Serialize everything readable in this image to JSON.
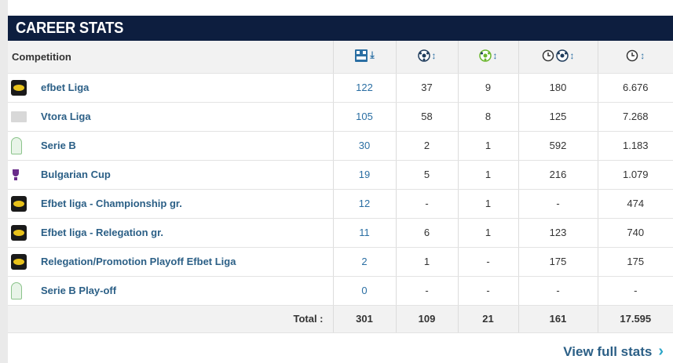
{
  "header": {
    "title": "CAREER STATS"
  },
  "table": {
    "competition_header": "Competition",
    "column_icons": [
      {
        "icon": "appearances-icon",
        "arrow": "⤓",
        "arrow_icon": "sort-desc-icon"
      },
      {
        "icon": "goals-icon",
        "arrow": "↕",
        "arrow_icon": "sort-icon"
      },
      {
        "icon": "assists-icon",
        "arrow": "↕",
        "arrow_icon": "sort-icon"
      },
      {
        "icon": "minutes-per-goal-icon",
        "arrow": "↕",
        "arrow_icon": "sort-icon"
      },
      {
        "icon": "minutes-played-icon",
        "arrow": "↕",
        "arrow_icon": "sort-icon"
      }
    ],
    "rows": [
      {
        "logo": "efbet",
        "name": "efbet Liga",
        "apps": "122",
        "goals": "37",
        "assists": "9",
        "mpg": "180",
        "minutes": "6.676"
      },
      {
        "logo": "vtora",
        "name": "Vtora Liga",
        "apps": "105",
        "goals": "58",
        "assists": "8",
        "mpg": "125",
        "minutes": "7.268"
      },
      {
        "logo": "serieb",
        "name": "Serie B",
        "apps": "30",
        "goals": "2",
        "assists": "1",
        "mpg": "592",
        "minutes": "1.183"
      },
      {
        "logo": "cup",
        "name": "Bulgarian Cup",
        "apps": "19",
        "goals": "5",
        "assists": "1",
        "mpg": "216",
        "minutes": "1.079"
      },
      {
        "logo": "efbet",
        "name": "Efbet liga - Championship gr.",
        "apps": "12",
        "goals": "-",
        "assists": "1",
        "mpg": "-",
        "minutes": "474"
      },
      {
        "logo": "efbet",
        "name": "Efbet liga - Relegation gr.",
        "apps": "11",
        "goals": "6",
        "assists": "1",
        "mpg": "123",
        "minutes": "740"
      },
      {
        "logo": "efbet",
        "name": "Relegation/Promotion Playoff Efbet Liga",
        "apps": "2",
        "goals": "1",
        "assists": "-",
        "mpg": "175",
        "minutes": "175"
      },
      {
        "logo": "serieb",
        "name": "Serie B Play-off",
        "apps": "0",
        "goals": "-",
        "assists": "-",
        "mpg": "-",
        "minutes": "-"
      }
    ],
    "total": {
      "label": "Total :",
      "apps": "301",
      "goals": "109",
      "assists": "21",
      "mpg": "161",
      "minutes": "17.595"
    }
  },
  "footer": {
    "link_label": "View full stats",
    "chevron": "›"
  },
  "colors": {
    "header_bg": "#0d1e3f",
    "link": "#2b5f86",
    "accent": "#2ba6c8"
  }
}
